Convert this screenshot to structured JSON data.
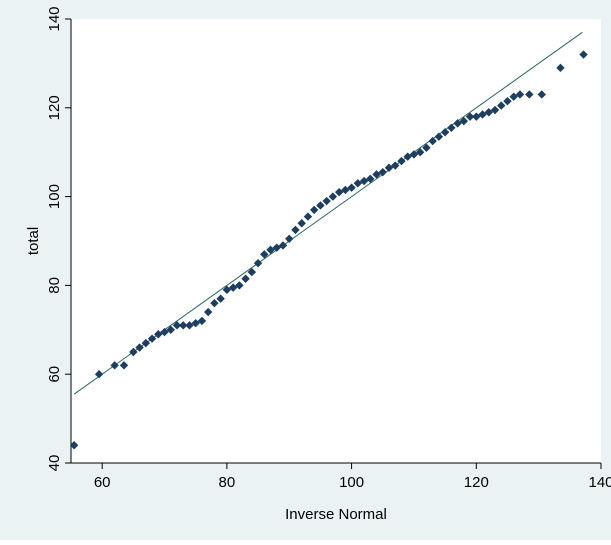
{
  "chart_data": {
    "type": "scatter",
    "xlabel": "Inverse Normal",
    "ylabel": "total",
    "xlim": [
      55,
      140
    ],
    "ylim": [
      40,
      140
    ],
    "xticks": [
      60,
      80,
      100,
      120,
      140
    ],
    "yticks": [
      40,
      60,
      80,
      100,
      120,
      140
    ],
    "grid": false,
    "legend": "none",
    "reference_line": {
      "x": [
        55.5,
        137
      ],
      "y": [
        55.5,
        137
      ]
    },
    "series": [
      {
        "x": [
          55.5,
          59.5,
          62,
          63.5,
          65,
          66,
          67,
          68,
          69,
          70,
          71,
          72,
          73,
          74,
          75,
          76,
          77,
          78,
          79,
          80,
          81,
          82,
          83,
          84,
          85,
          86,
          87,
          88,
          89,
          90,
          91,
          92,
          93,
          94,
          95,
          96,
          97,
          98,
          99,
          100,
          101,
          102,
          103,
          104,
          105,
          106,
          107,
          108,
          109,
          110,
          111,
          112,
          113,
          114,
          115,
          116,
          117,
          118,
          119,
          120,
          121,
          122,
          123,
          124,
          125,
          126,
          127,
          128.5,
          130.5,
          133.5,
          137.2
        ],
        "y": [
          44,
          60,
          62,
          62,
          65,
          66,
          67,
          68,
          69,
          69.5,
          70,
          71,
          71,
          71,
          71.5,
          72,
          74,
          76,
          77,
          79,
          79.5,
          80,
          81.5,
          83,
          85,
          87,
          88,
          88.5,
          89,
          90.5,
          92.5,
          94,
          95.5,
          97,
          98,
          99,
          100,
          101,
          101.5,
          102,
          103,
          103.5,
          104,
          105,
          105.5,
          106.5,
          107,
          108,
          109,
          109.5,
          110,
          111,
          112.5,
          113.5,
          114.5,
          115.5,
          116.5,
          117,
          118,
          118,
          118.5,
          119,
          119.5,
          120.5,
          121.5,
          122.5,
          123,
          123,
          123,
          129,
          132
        ]
      }
    ]
  }
}
